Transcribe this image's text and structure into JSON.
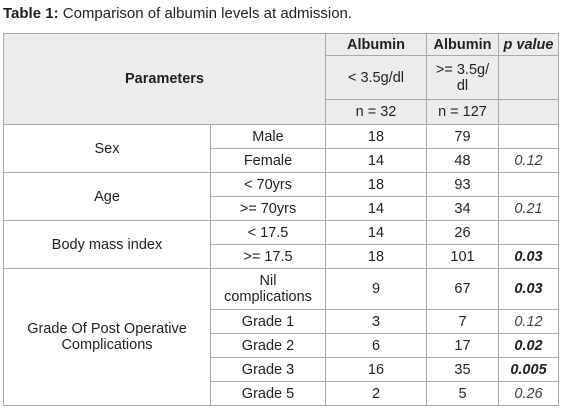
{
  "caption": {
    "label": "Table 1:",
    "text": " Comparison of albumin levels at admission."
  },
  "header": {
    "parameters": "Parameters",
    "albumin_a": "Albumin",
    "albumin_b": "Albumin",
    "p_value": "p value",
    "range_a": "< 3.5g/dl",
    "range_b_line1": ">= 3.5g/",
    "range_b_line2": "dl",
    "n_a": "n = 32",
    "n_b": "n = 127"
  },
  "rows": [
    {
      "group": "Sex",
      "sub": "Male",
      "a": "18",
      "b": "79",
      "p": ""
    },
    {
      "sub": "Female",
      "a": "14",
      "b": "48",
      "p": "0.12"
    },
    {
      "group": "Age",
      "sub": "< 70yrs",
      "a": "18",
      "b": "93",
      "p": ""
    },
    {
      "sub": ">= 70yrs",
      "a": "14",
      "b": "34",
      "p": "0.21"
    },
    {
      "group": "Body mass index",
      "sub": "< 17.5",
      "a": "14",
      "b": "26",
      "p": ""
    },
    {
      "sub": ">= 17.5",
      "a": "18",
      "b": "101",
      "p": "0.03"
    },
    {
      "group_line1": "Grade Of Post Operative",
      "group_line2": "Complications",
      "sub_line1": "Nil",
      "sub_line2": "complications",
      "a": "9",
      "b": "67",
      "p": "0.03"
    },
    {
      "sub": "Grade 1",
      "a": "3",
      "b": "7",
      "p": "0.12"
    },
    {
      "sub": "Grade 2",
      "a": "6",
      "b": "17",
      "p": "0.02"
    },
    {
      "sub": "Grade 3",
      "a": "16",
      "b": "35",
      "p": "0.005"
    },
    {
      "sub": "Grade 5",
      "a": "2",
      "b": "5",
      "p": "0.26"
    }
  ]
}
